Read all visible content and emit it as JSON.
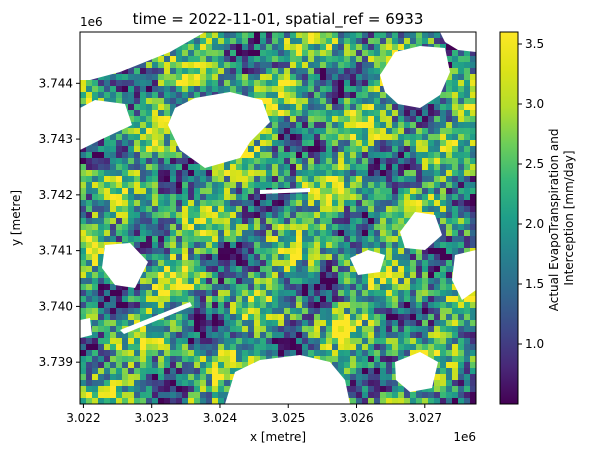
{
  "chart_data": {
    "type": "heatmap",
    "title": "time = 2022-11-01, spatial_ref = 6933",
    "xlabel": "x [metre]",
    "ylabel": "y [metre]",
    "x_offset_label": "1e6",
    "y_offset_label": "1e6",
    "xlim": [
      3.02195,
      3.02775
    ],
    "ylim": [
      3.73825,
      3.74492
    ],
    "x_ticks": [
      3.022,
      3.023,
      3.024,
      3.025,
      3.026,
      3.027
    ],
    "x_tick_labels": [
      "3.022",
      "3.023",
      "3.024",
      "3.025",
      "3.026",
      "3.027"
    ],
    "y_ticks": [
      3.739,
      3.74,
      3.741,
      3.742,
      3.743,
      3.744
    ],
    "y_tick_labels": [
      "3.739",
      "3.740",
      "3.741",
      "3.742",
      "3.743",
      "3.744"
    ],
    "colorbar": {
      "label_lines": [
        "Actual EvapoTranspiration and",
        "Interception [mm/day]"
      ],
      "colormap": "viridis",
      "vmin": 0.5,
      "vmax": 3.6,
      "ticks": [
        1.0,
        1.5,
        2.0,
        2.5,
        3.0,
        3.5
      ],
      "tick_labels": [
        "1.0",
        "1.5",
        "2.0",
        "2.5",
        "3.0",
        "3.5"
      ]
    },
    "grid": false,
    "nodata_color": "#ffffff"
  }
}
